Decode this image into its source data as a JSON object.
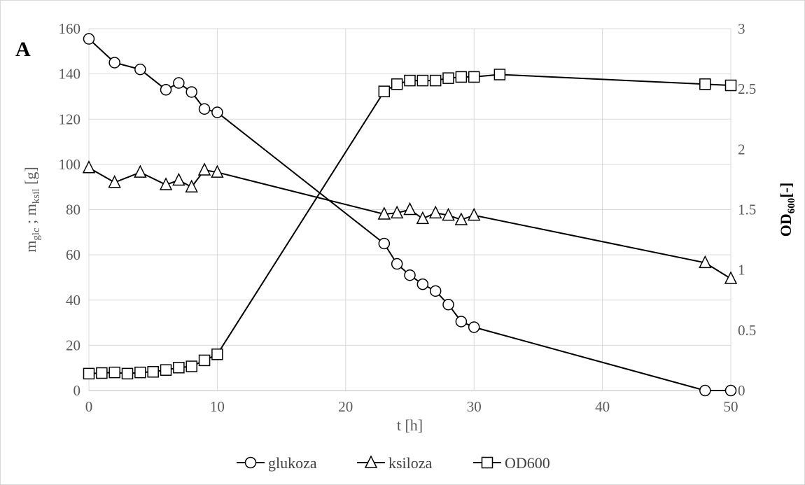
{
  "chart_data": {
    "type": "line",
    "panel_label": "A",
    "xlabel": "t [h]",
    "xlim": [
      0,
      50
    ],
    "x_ticks": [
      0,
      10,
      20,
      30,
      40,
      50
    ],
    "ylabel_left": {
      "base1": "m",
      "sub1": "glc",
      "mid": " ; m",
      "sub2": "ksil",
      "tail": " [g]"
    },
    "ylim_left": [
      0,
      160
    ],
    "y_ticks_left": [
      0,
      20,
      40,
      60,
      80,
      100,
      120,
      140,
      160
    ],
    "ylabel_right": {
      "base": "OD",
      "sub": "600",
      "tail": "[-]"
    },
    "ylim_right": [
      0,
      3
    ],
    "y_ticks_right": [
      0,
      0.5,
      1,
      1.5,
      2,
      2.5,
      3
    ],
    "y_tick_labels_right": [
      "0",
      "0.5",
      "1",
      "1.5",
      "2",
      "2.5",
      "3"
    ],
    "grid": "horizontal",
    "legend_position": "bottom",
    "series": [
      {
        "name": "glukoza",
        "marker": "circle",
        "axis": "left",
        "x": [
          0,
          2,
          4,
          6,
          7,
          8,
          9,
          10,
          23,
          24,
          25,
          26,
          27,
          28,
          29,
          30,
          48,
          50
        ],
        "y": [
          155.5,
          145,
          142,
          133,
          136,
          132,
          124.5,
          123,
          65,
          56,
          51,
          47,
          44,
          38,
          30.5,
          28,
          0,
          0
        ]
      },
      {
        "name": "ksiloza",
        "marker": "triangle",
        "axis": "left",
        "x": [
          0,
          2,
          4,
          6,
          7,
          8,
          9,
          10,
          23,
          24,
          25,
          26,
          27,
          28,
          29,
          30,
          48,
          50
        ],
        "y": [
          98.5,
          92,
          96.5,
          91,
          93,
          90,
          97.5,
          96.5,
          78,
          78.5,
          80,
          76,
          78.5,
          77.5,
          75.5,
          77.5,
          56.5,
          49.5
        ]
      },
      {
        "name": "OD600",
        "marker": "square",
        "axis": "right",
        "x": [
          0,
          1,
          2,
          3,
          4,
          5,
          6,
          7,
          8,
          9,
          10,
          23,
          24,
          25,
          26,
          27,
          28,
          29,
          30,
          32,
          48,
          50
        ],
        "y": [
          0.14,
          0.145,
          0.15,
          0.14,
          0.15,
          0.155,
          0.17,
          0.19,
          0.2,
          0.25,
          0.3,
          2.48,
          2.54,
          2.57,
          2.57,
          2.57,
          2.59,
          2.6,
          2.6,
          2.62,
          2.54,
          2.53
        ]
      }
    ]
  }
}
